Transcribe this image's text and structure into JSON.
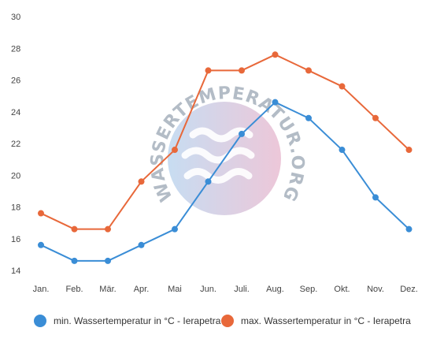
{
  "chart_data": {
    "type": "line",
    "categories": [
      "Jan.",
      "Feb.",
      "Mär.",
      "Apr.",
      "Mai",
      "Jun.",
      "Juli.",
      "Aug.",
      "Sep.",
      "Okt.",
      "Nov.",
      "Dez."
    ],
    "series": [
      {
        "name": "min. Wassertemperatur in °C - Ierapetra",
        "color": "#3a8dd6",
        "values": [
          15.6,
          14.6,
          14.6,
          15.6,
          16.6,
          19.6,
          22.6,
          24.6,
          23.6,
          21.6,
          18.6,
          16.6
        ]
      },
      {
        "name": "max. Wassertemperatur in °C - Ierapetra",
        "color": "#e8683a",
        "values": [
          17.6,
          16.6,
          16.6,
          19.6,
          21.6,
          26.6,
          26.6,
          27.6,
          26.6,
          25.6,
          23.6,
          21.6
        ]
      }
    ],
    "yticks": [
      "14",
      "16",
      "18",
      "20",
      "22",
      "24",
      "26",
      "28",
      "30"
    ],
    "ylim": [
      14,
      30
    ],
    "grid": false,
    "legend": "bottom",
    "watermark": "WASSERTEMPERATUR.ORG"
  }
}
